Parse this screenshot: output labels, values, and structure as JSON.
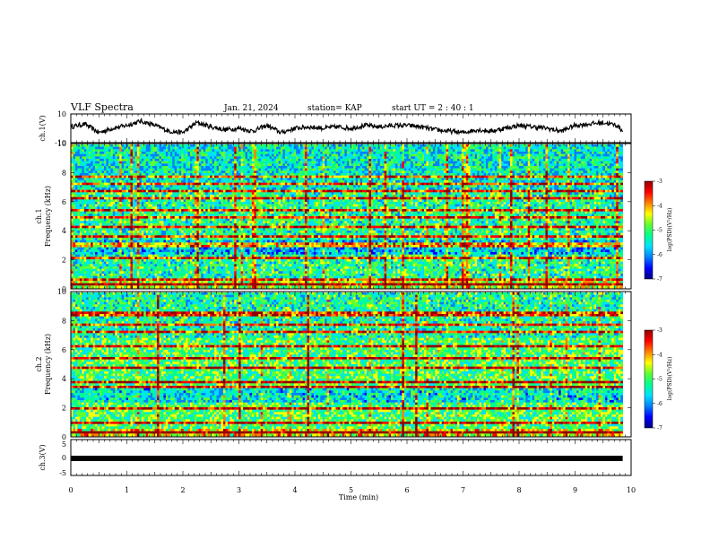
{
  "header": {
    "title": "VLF Spectra",
    "date": "Jan. 21, 2024",
    "station": "station= KAP",
    "start": "start  UT =   2 : 40 : 1"
  },
  "colors": {
    "trace": "#000000",
    "colormap": [
      "#00007f",
      "#0000ff",
      "#0080ff",
      "#00e0ff",
      "#00ff90",
      "#60ff30",
      "#ffff00",
      "#ff8000",
      "#ff0000",
      "#900000"
    ]
  },
  "chart_data": [
    {
      "type": "line",
      "name": "ch1-waveform",
      "ylabel": "ch.1(V)",
      "ylim": [
        -10,
        10
      ],
      "yticks": [
        "10",
        "-10"
      ],
      "xlim": [
        0,
        10
      ],
      "description_of_values": "raw voltage trace, fluctuating around 0 V with amplitude ~±5 V",
      "x": [
        0,
        0.25,
        0.5,
        0.75,
        1.0,
        1.25,
        1.5,
        1.75,
        2.0,
        2.25,
        2.5,
        2.75,
        3.0,
        3.25,
        3.5,
        3.75,
        4.0,
        4.25,
        4.5,
        4.75,
        5.0,
        5.25,
        5.5,
        5.75,
        6.0,
        6.25,
        6.5,
        6.75,
        7.0,
        7.25,
        7.5,
        7.75,
        8.0,
        8.25,
        8.5,
        8.75,
        9.0,
        9.25,
        9.5,
        9.75,
        9.85
      ],
      "values": [
        1,
        3,
        -3,
        0,
        2,
        5,
        2,
        -2,
        -3,
        4,
        1,
        -1,
        0,
        -2,
        2,
        -3,
        0,
        1,
        0,
        1,
        0,
        2,
        1,
        2,
        2,
        1,
        -1,
        -2,
        -3,
        -1,
        -2,
        0,
        2,
        1,
        0,
        -2,
        2,
        3,
        4,
        2,
        -2
      ]
    },
    {
      "type": "heatmap",
      "name": "ch1-spectrogram",
      "ylabel_top": "ch.1",
      "ylabel": "Frequency (kHz)",
      "ylim": [
        0,
        10
      ],
      "yticks": [
        "0",
        "2",
        "4",
        "6",
        "8",
        "10"
      ],
      "xlim": [
        0,
        9.85
      ],
      "colorbar": {
        "label": "log(PSD)(V²/Hz)",
        "range": [
          -7,
          -3
        ],
        "ticks": [
          "-3",
          "-4",
          "-5",
          "-6",
          "-7"
        ]
      },
      "narrowband_lines_khz": [
        0.2,
        0.6,
        2.15,
        3.0,
        3.6,
        4.3,
        4.9,
        5.4,
        6.3,
        6.75,
        7.2,
        7.8
      ],
      "background_level": -5.2
    },
    {
      "type": "heatmap",
      "name": "ch2-spectrogram",
      "ylabel_top": "ch.2",
      "ylabel": "Frequency (kHz)",
      "ylim": [
        0,
        10
      ],
      "yticks": [
        "0",
        "2",
        "4",
        "6",
        "8",
        "10"
      ],
      "xlim": [
        0,
        9.85
      ],
      "colorbar": {
        "label": "log(PSD)(V²/Hz)",
        "range": [
          -7,
          -3
        ],
        "ticks": [
          "-3",
          "-4",
          "-5",
          "-6",
          "-7"
        ]
      },
      "narrowband_lines_khz": [
        0.3,
        0.9,
        1.9,
        3.4,
        3.8,
        4.7,
        5.4,
        6.3,
        7.2,
        7.8,
        8.5
      ],
      "background_level": -5.0
    },
    {
      "type": "line",
      "name": "ch3-waveform",
      "ylabel": "ch.3(V)",
      "ylim": [
        -5,
        5
      ],
      "yticks": [
        "5",
        "0",
        "-5"
      ],
      "xlim": [
        0,
        10
      ],
      "xlabel": "Time (min)",
      "xticks": [
        "0",
        "1",
        "2",
        "3",
        "4",
        "5",
        "6",
        "7",
        "8",
        "9",
        "10"
      ],
      "x": [
        0,
        9.85
      ],
      "values": [
        0,
        0
      ]
    }
  ]
}
